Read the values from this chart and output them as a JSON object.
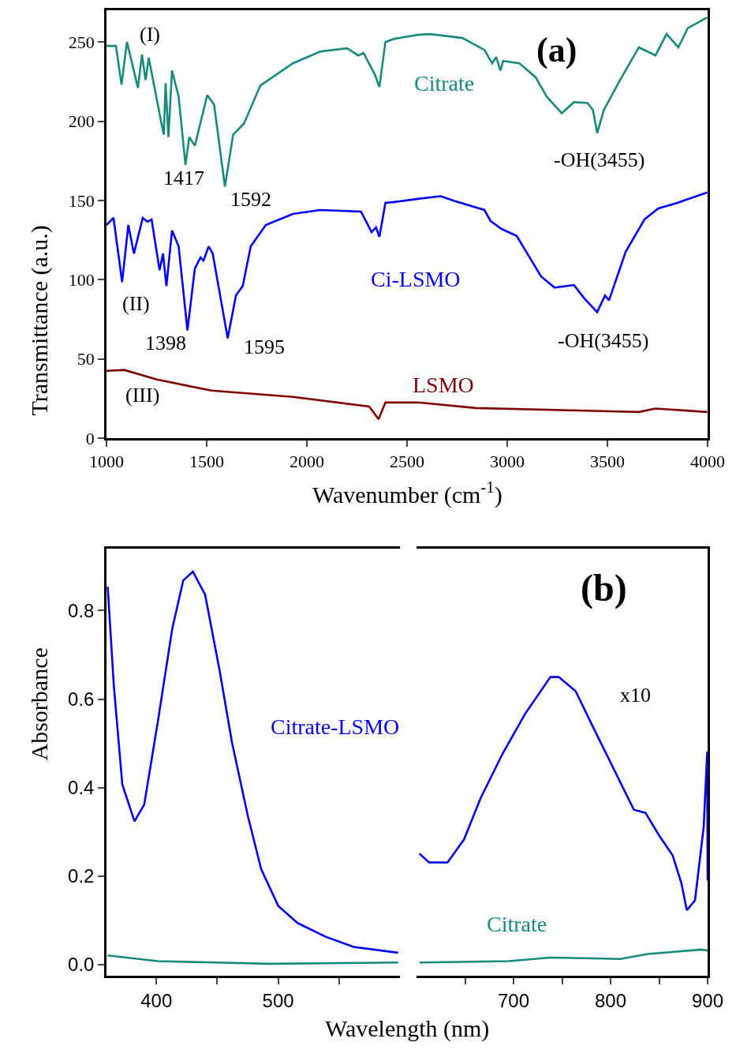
{
  "chart_data": [
    {
      "type": "line",
      "title": "(a)",
      "xlabel": "Wavenumber (cm$^{-1}$)",
      "ylabel": "Transmittance (a.u.)",
      "xlim": [
        1000,
        4000
      ],
      "xticks": [
        1000,
        1500,
        2000,
        2500,
        3000,
        3500,
        4000
      ],
      "ylim": [
        0,
        270
      ],
      "yticks": [
        0,
        50,
        100,
        150,
        200,
        250
      ],
      "legend": false,
      "series": [
        {
          "name": "Citrate",
          "color": "#178a80",
          "x": [
            1000,
            1047,
            1075,
            1102,
            1157,
            1177,
            1195,
            1211,
            1272,
            1286,
            1295,
            1309,
            1327,
            1360,
            1394,
            1413,
            1441,
            1503,
            1537,
            1591,
            1632,
            1686,
            1768,
            1930,
            2067,
            2201,
            2256,
            2283,
            2339,
            2362,
            2392,
            2437,
            2555,
            2614,
            2776,
            2886,
            2925,
            2945,
            2966,
            2980,
            3061,
            3142,
            3197,
            3272,
            3333,
            3401,
            3428,
            3449,
            3482,
            3563,
            3657,
            3740,
            3795,
            3854,
            3901,
            3998
          ],
          "values": [
            247.5,
            247.5,
            223,
            250,
            221,
            242,
            226,
            240,
            200,
            191.5,
            224,
            190,
            232,
            215.5,
            172.5,
            190,
            184.5,
            216.5,
            210.5,
            158.7,
            191.5,
            198.5,
            222.5,
            236.5,
            244,
            246,
            241.5,
            243,
            229.5,
            221.6,
            250,
            252,
            254.5,
            255,
            252.5,
            245,
            236.5,
            240.5,
            232,
            238,
            236.5,
            227.7,
            215.5,
            205,
            212,
            211.5,
            207,
            192.5,
            207,
            226,
            246.6,
            241.5,
            255,
            246.6,
            258.7,
            265.5
          ]
        },
        {
          "name": "Ci-LSMO",
          "color": "#0000ff",
          "x": [
            1000,
            1035,
            1078,
            1109,
            1137,
            1181,
            1205,
            1225,
            1265,
            1282,
            1299,
            1327,
            1360,
            1404,
            1441,
            1469,
            1484,
            1510,
            1530,
            1605,
            1646,
            1680,
            1720,
            1795,
            1930,
            2067,
            2270,
            2323,
            2345,
            2362,
            2392,
            2437,
            2555,
            2668,
            2736,
            2886,
            2917,
            2972,
            3047,
            3169,
            3236,
            3333,
            3386,
            3449,
            3488,
            3508,
            3591,
            3685,
            3754,
            3849,
            3998
          ],
          "values": [
            134.5,
            139,
            98.5,
            134.5,
            116.5,
            139,
            136.5,
            138,
            106,
            116.5,
            96,
            131,
            121,
            68,
            107,
            114,
            112,
            121,
            116.5,
            63,
            90,
            96,
            121,
            134.5,
            141.5,
            144,
            143,
            130,
            133,
            127,
            148.5,
            149,
            151,
            152.7,
            149.7,
            144,
            137,
            132,
            127.6,
            102,
            95,
            96.6,
            88,
            79.5,
            90,
            87,
            117.5,
            138,
            145,
            148.5,
            155
          ]
        },
        {
          "name": "LSMO",
          "color": "#800000",
          "x": [
            1000,
            1089,
            1252,
            1524,
            1930,
            2311,
            2358,
            2392,
            2555,
            2844,
            3657,
            3740,
            3998
          ],
          "values": [
            42.5,
            43,
            37,
            30,
            26,
            20,
            12,
            22.5,
            22.5,
            19,
            16.5,
            18.7,
            16.5
          ]
        }
      ],
      "annotations": [
        "(I)",
        "1417",
        "1592",
        "-OH(3455)",
        "(II)",
        "1398",
        "1595",
        "-OH(3455)",
        "(III)"
      ]
    },
    {
      "type": "line",
      "xlabel": "Wavelength (nm)",
      "ylabel": "Absorbance",
      "xlim": [
        359,
        600
      ],
      "xticks": [
        400,
        {
          "value": 450,
          "label": null
        },
        500,
        {
          "value": 550,
          "label": null
        }
      ],
      "ylim": [
        -0.025,
        0.94
      ],
      "yticks": [
        {
          "value": 0,
          "label": "0.0"
        },
        0.2,
        0.4,
        0.6,
        0.8
      ],
      "legend": false,
      "series": [
        {
          "name": "Citrate-LSMO",
          "color": "#0000ee",
          "x": [
            360,
            365,
            372,
            382,
            390,
            401.5,
            413,
            422,
            430,
            440,
            452,
            462,
            475,
            486,
            500,
            516,
            539,
            562,
            598.5
          ],
          "values": [
            0.854,
            0.631,
            0.407,
            0.324,
            0.362,
            0.555,
            0.759,
            0.868,
            0.888,
            0.836,
            0.663,
            0.503,
            0.337,
            0.216,
            0.133,
            0.094,
            0.063,
            0.04,
            0.027
          ]
        },
        {
          "color": "#178a80",
          "x": [
            360,
            401,
            493,
            598.5
          ],
          "values": [
            0.021,
            0.008,
            0.002,
            0.005
          ]
        }
      ]
    },
    {
      "type": "line",
      "title": "(b)",
      "xlim": [
        600,
        900
      ],
      "xticks": [
        {
          "value": 650,
          "label": null
        },
        700,
        {
          "value": 750,
          "label": null
        },
        800,
        {
          "value": 850,
          "label": null
        },
        900
      ],
      "ylim": [
        -0.025,
        0.94
      ],
      "tick_labels": "x",
      "legend": false,
      "series": [
        {
          "color": "#0000ee",
          "x": [
            603,
            613,
            632,
            649,
            666,
            689,
            712,
            738,
            746.6,
            764,
            781,
            804,
            824,
            836,
            850,
            864,
            873,
            878.6,
            887,
            896,
            899.6,
            900
          ],
          "values": [
            0.251,
            0.231,
            0.231,
            0.283,
            0.376,
            0.478,
            0.567,
            0.65,
            0.65,
            0.618,
            0.541,
            0.439,
            0.35,
            0.343,
            0.292,
            0.247,
            0.184,
            0.123,
            0.145,
            0.312,
            0.481,
            0.19
          ]
        },
        {
          "name": "Citrate",
          "color": "#178a80",
          "x": [
            603,
            695,
            738,
            810,
            838,
            893,
            900
          ],
          "values": [
            0.005,
            0.008,
            0.016,
            0.013,
            0.024,
            0.034,
            0.032
          ]
        }
      ],
      "annotations": [
        "x10"
      ]
    }
  ]
}
